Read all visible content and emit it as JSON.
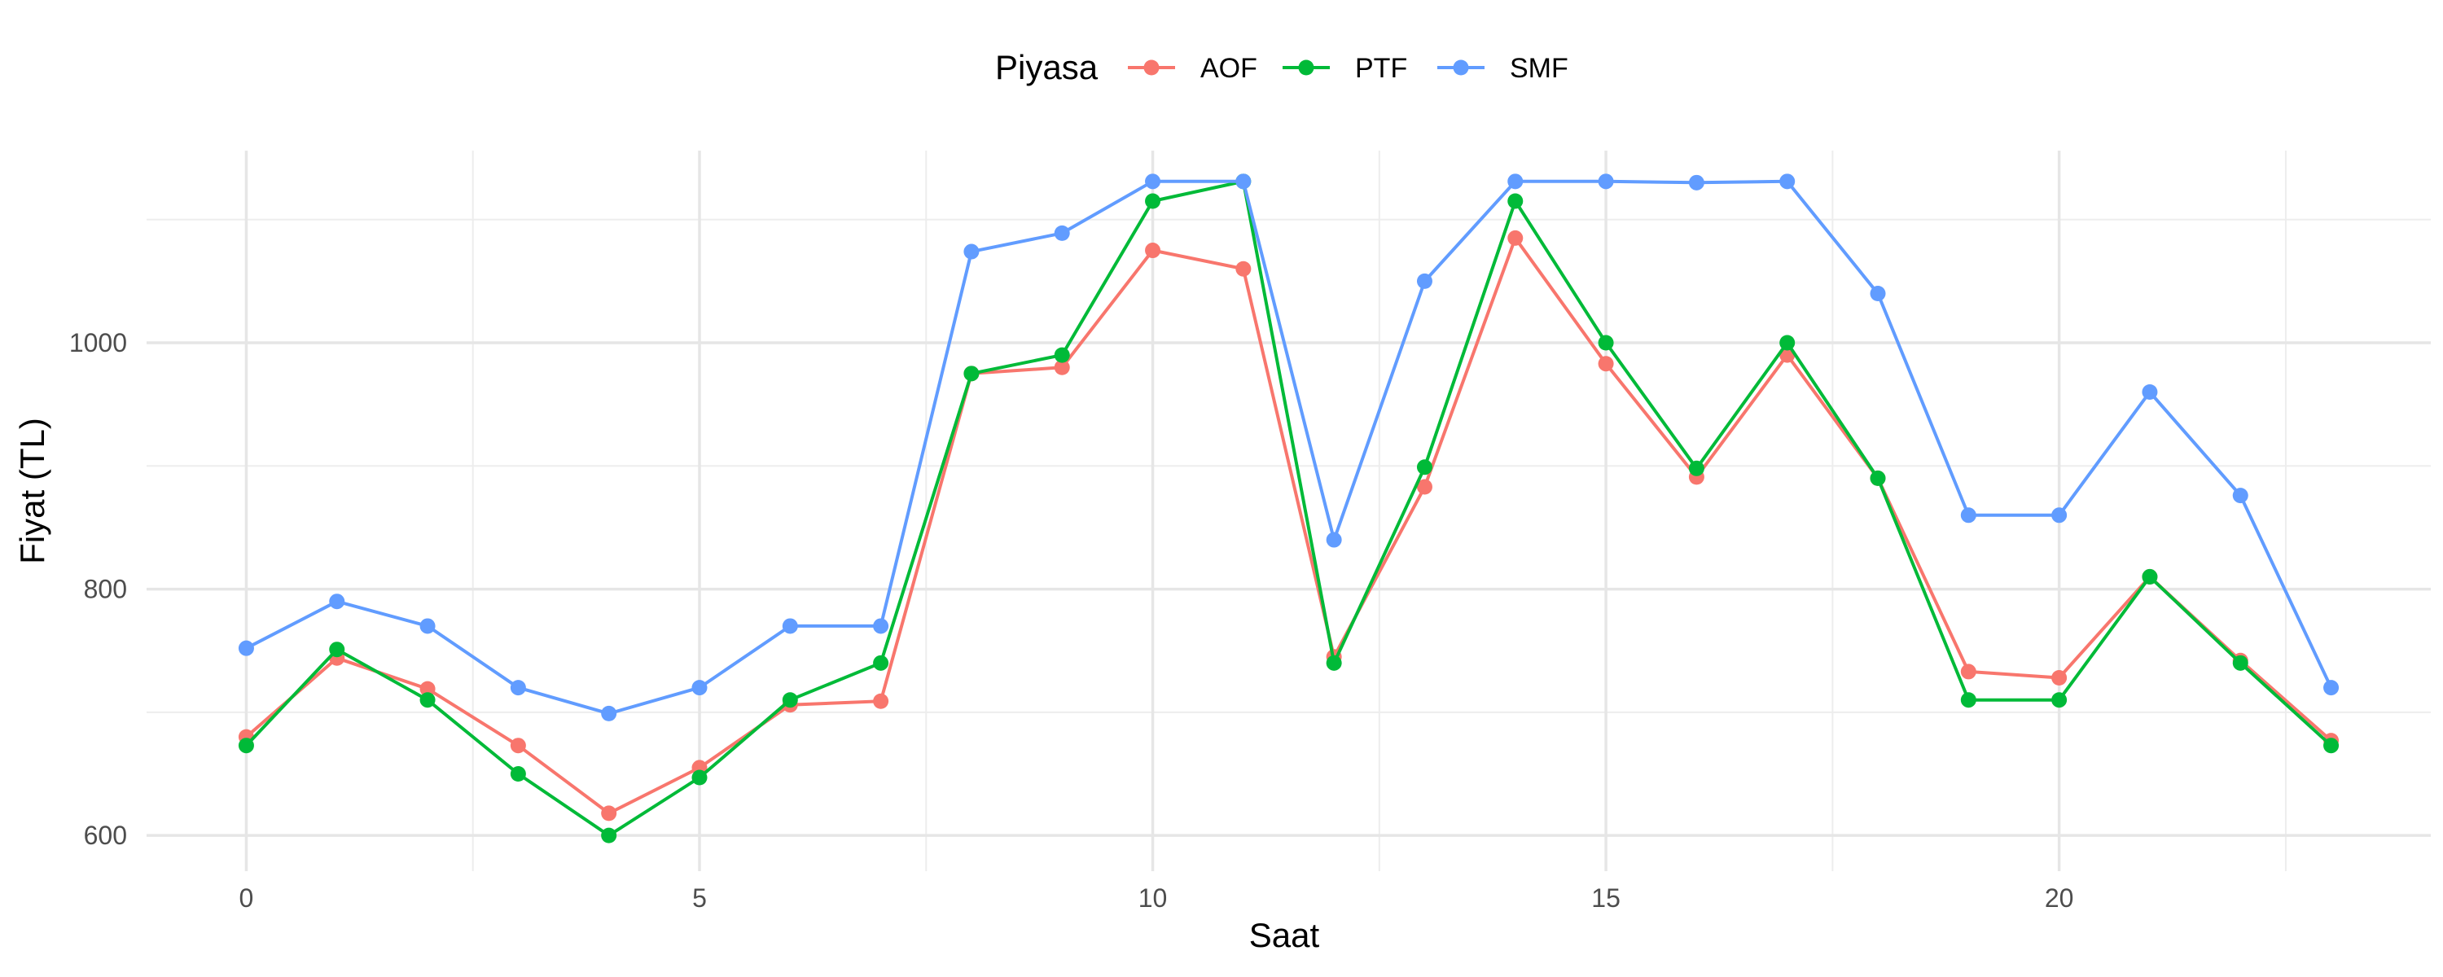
{
  "chart_data": {
    "type": "line",
    "title": "",
    "xlabel": "Saat",
    "ylabel": "Fiyat (TL)",
    "legend_title": "Piyasa",
    "legend_position": "top",
    "grid": true,
    "xlim": [
      -1.1,
      24.1
    ],
    "ylim": [
      571,
      1156
    ],
    "x_ticks": [
      0,
      5,
      10,
      15,
      20
    ],
    "y_ticks": [
      600,
      800,
      1000
    ],
    "x": [
      0,
      1,
      2,
      3,
      4,
      5,
      6,
      7,
      8,
      9,
      10,
      11,
      12,
      13,
      14,
      15,
      16,
      17,
      18,
      19,
      20,
      21,
      22,
      23
    ],
    "series": [
      {
        "name": "AOF",
        "color": "#F8766D",
        "values": [
          680,
          744,
          719,
          673,
          618,
          655,
          706,
          709,
          975,
          980,
          1075,
          1060,
          745,
          883,
          1085,
          983,
          891,
          990,
          890,
          733,
          728,
          810,
          742,
          677
        ]
      },
      {
        "name": "PTF",
        "color": "#00BA38",
        "values": [
          673,
          751,
          710,
          650,
          600,
          647,
          710,
          740,
          975,
          990,
          1115,
          1131,
          740,
          899,
          1115,
          1000,
          898,
          1000,
          890,
          710,
          710,
          810,
          740,
          673
        ]
      },
      {
        "name": "SMF",
        "color": "#619CFF",
        "values": [
          752,
          790,
          770,
          720,
          699,
          720,
          770,
          770,
          1074,
          1089,
          1131,
          1131,
          840,
          1050,
          1131,
          1131,
          1130,
          1131,
          1040,
          860,
          860,
          960,
          876,
          720
        ]
      }
    ]
  }
}
